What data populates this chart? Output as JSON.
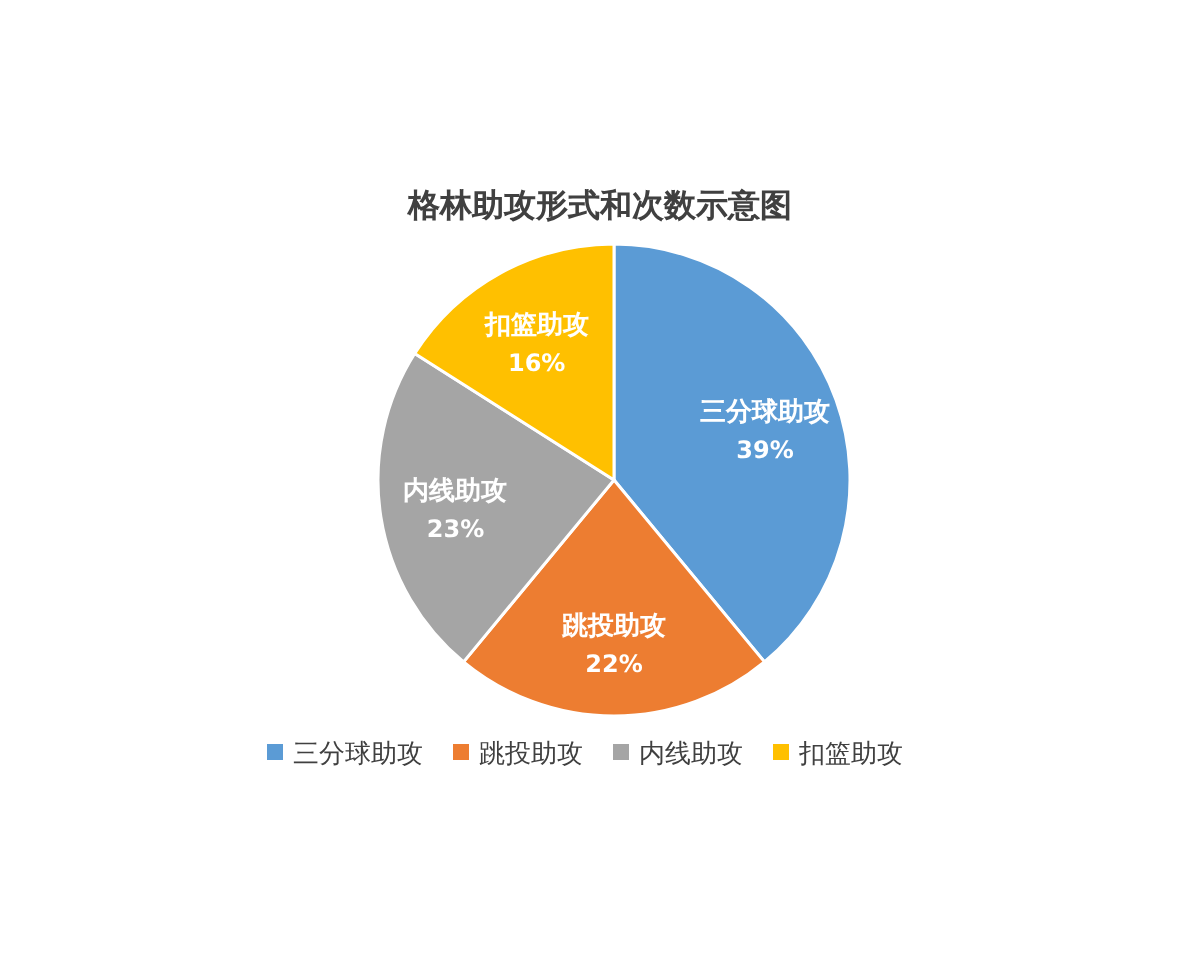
{
  "chart_data": {
    "type": "pie",
    "title": "格林助攻形式和次数示意图",
    "categories": [
      "三分球助攻",
      "跳投助攻",
      "内线助攻",
      "扣篮助攻"
    ],
    "values": [
      39,
      22,
      23,
      16
    ],
    "colors": [
      "#5b9bd5",
      "#ed7d31",
      "#a5a5a5",
      "#ffc000"
    ],
    "value_labels": [
      "39%",
      "22%",
      "23%",
      "16%"
    ],
    "legend": "bottom"
  }
}
